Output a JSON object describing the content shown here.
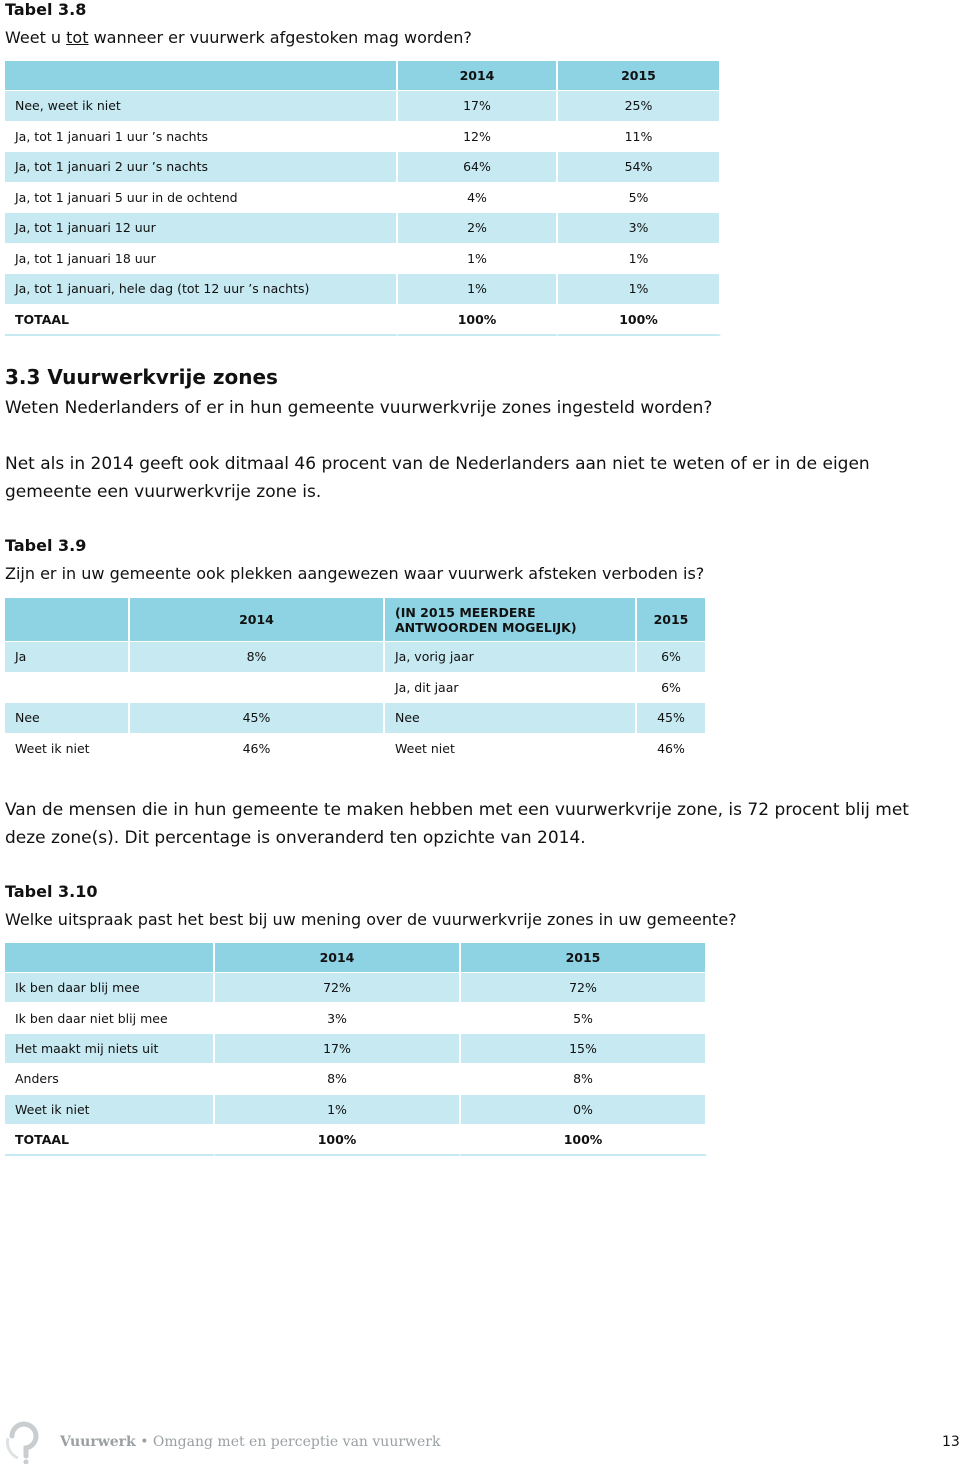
{
  "table_3_8": {
    "label": "Tabel 3.8",
    "question_parts": [
      "Weet u ",
      "tot",
      " wanneer er vuurwerk afgestoken mag worden?"
    ],
    "header": [
      "2014",
      "2015"
    ],
    "rows": [
      [
        "Nee, weet ik niet",
        "17%",
        "25%"
      ],
      [
        "Ja, tot 1 januari 1 uur ’s nachts",
        "12%",
        "11%"
      ],
      [
        "Ja, tot 1 januari 2 uur ’s nachts",
        "64%",
        "54%"
      ],
      [
        "Ja, tot 1 januari 5 uur in de ochtend",
        "4%",
        "5%"
      ],
      [
        "Ja, tot 1 januari 12 uur",
        "2%",
        "3%"
      ],
      [
        "Ja, tot 1 januari 18 uur",
        "1%",
        "1%"
      ],
      [
        "Ja, tot 1 januari, hele dag (tot 12 uur ’s nachts)",
        "1%",
        "1%"
      ]
    ],
    "total": [
      "TOTAAL",
      "100%",
      "100%"
    ]
  },
  "section_3_3": {
    "heading": "3.3 Vuurwerkvrije zones",
    "question": "Weten Nederlanders of er in hun gemeente vuurwerkvrije zones ingesteld worden?",
    "paragraph": "Net als in 2014 geeft ook ditmaal 46 procent van de Nederlanders aan niet te weten of er in de eigen gemeente een vuurwerkvrije zone is."
  },
  "table_3_9": {
    "label": "Tabel 3.9",
    "question": "Zijn er in uw gemeente ook plekken aangewezen waar vuurwerk afsteken verboden is?",
    "header": [
      "2014",
      "(IN 2015 MEERDERE ANTWOORDEN MOGELIJK)",
      "2015"
    ],
    "rows": [
      [
        "Ja",
        "8%",
        "Ja, vorig jaar",
        "6%"
      ],
      [
        null,
        null,
        "Ja, dit jaar",
        "6%"
      ],
      [
        "Nee",
        "45%",
        "Nee",
        "45%"
      ],
      [
        "Weet ik niet",
        "46%",
        "Weet niet",
        "46%"
      ]
    ]
  },
  "paragraph_2": "Van de mensen die in hun gemeente te maken hebben met een vuurwerkvrije zone, is 72 procent blij met deze zone(s). Dit percentage is onveranderd ten opzichte van 2014.",
  "table_3_10": {
    "label": "Tabel 3.10",
    "question": "Welke uitspraak past het best bij uw mening over de vuurwerkvrije zones in uw gemeente?",
    "header": [
      "2014",
      "2015"
    ],
    "rows": [
      [
        "Ik ben daar blij mee",
        "72%",
        "72%"
      ],
      [
        "Ik ben daar niet blij mee",
        "3%",
        "5%"
      ],
      [
        "Het maakt mij niets uit",
        "17%",
        "15%"
      ],
      [
        "Anders",
        "8%",
        "8%"
      ],
      [
        "Weet ik niet",
        "1%",
        "0%"
      ]
    ],
    "total": [
      "TOTAAL",
      "100%",
      "100%"
    ]
  },
  "footer": {
    "brand": "Vuurwerk",
    "separator": "•",
    "subtitle": "Omgang met en perceptie van vuurwerk",
    "page": "13"
  }
}
